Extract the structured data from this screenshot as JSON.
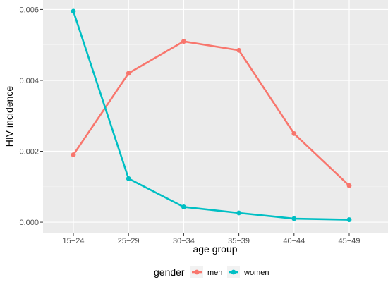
{
  "chart_data": {
    "type": "line",
    "xlabel": "age group",
    "ylabel": "HIV incidence",
    "categories": [
      "15−24",
      "25−29",
      "30−34",
      "35−39",
      "40−44",
      "45−49"
    ],
    "y_ticks": [
      0.0,
      0.002,
      0.004,
      0.006
    ],
    "y_tick_labels": [
      "0.000",
      "0.002",
      "0.004",
      "0.006"
    ],
    "ylim": [
      -0.000297,
      0.006267
    ],
    "grid": true,
    "legend": {
      "title": "gender",
      "placement": "bottom"
    },
    "series": [
      {
        "name": "men",
        "color": "#F8766D",
        "values": [
          0.0019,
          0.0042,
          0.0051,
          0.00485,
          0.0025,
          0.00103
        ]
      },
      {
        "name": "women",
        "color": "#00BFC4",
        "values": [
          0.00595,
          0.00123,
          0.00043,
          0.00026,
          0.0001,
          7e-05
        ]
      }
    ]
  }
}
